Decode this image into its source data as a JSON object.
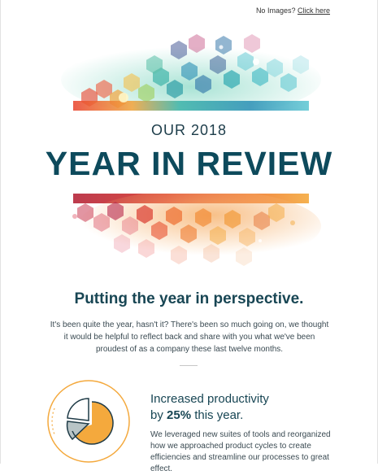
{
  "topbar": {
    "no_images_text": "No Images?",
    "click_here_label": "Click here"
  },
  "hero": {
    "overline": "OUR 2018",
    "headline": "YEAR IN REVIEW"
  },
  "section": {
    "title": "Putting the year in perspective.",
    "intro": "It's been quite the year, hasn't it? There's been so much going on, we thought it would be helpful to reflect back and share with you what we've been proudest of as a company these last twelve months."
  },
  "stat": {
    "icon": "pie-chart-icon",
    "heading_line1": "Increased productivity",
    "heading_prefix": "by",
    "heading_value": "25%",
    "heading_suffix": "this year.",
    "body": "We leveraged new suites of tools and reorganized how we approached product cycles to create efficiencies and streamline our processes to great effect."
  },
  "colors": {
    "headline": "#0d4a5c",
    "accent_orange": "#f4a93d",
    "teal": "#2aa8b0"
  }
}
